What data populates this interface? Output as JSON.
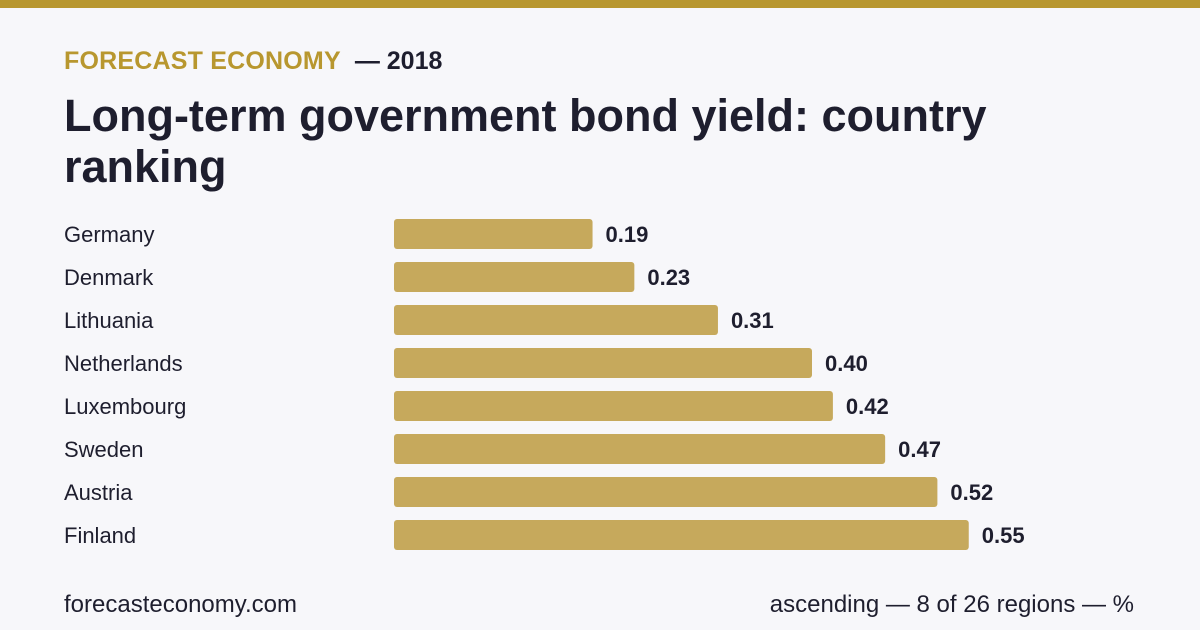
{
  "header": {
    "brand": "FORECAST ECONOMY",
    "year_label": "— 2018",
    "title": "Long-term government bond yield: country ranking"
  },
  "footer": {
    "site": "forecasteconomy.com",
    "note": "ascending — 8 of 26 regions — %"
  },
  "colors": {
    "accent": "#b8972f",
    "bar": "#c6a95c",
    "text": "#1e1e2e",
    "background": "#f7f7fa"
  },
  "chart_data": {
    "type": "bar",
    "orientation": "horizontal",
    "title": "Long-term government bond yield: country ranking",
    "unit": "%",
    "categories": [
      "Germany",
      "Denmark",
      "Lithuania",
      "Netherlands",
      "Luxembourg",
      "Sweden",
      "Austria",
      "Finland"
    ],
    "values": [
      0.19,
      0.23,
      0.31,
      0.4,
      0.42,
      0.47,
      0.52,
      0.55
    ],
    "value_labels": [
      "0.19",
      "0.23",
      "0.31",
      "0.40",
      "0.42",
      "0.47",
      "0.52",
      "0.55"
    ],
    "sort": "ascending",
    "grid": false,
    "legend": "none"
  }
}
